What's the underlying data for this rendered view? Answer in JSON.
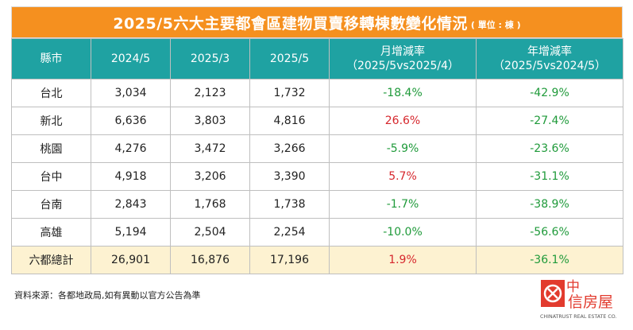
{
  "title": {
    "main": "2025/5六大主要都會區建物買賣移轉棟數變化情況",
    "unit": "( 單位 : 棟 )"
  },
  "header": [
    {
      "line1": "縣市",
      "line2": ""
    },
    {
      "line1": "2024/5",
      "line2": ""
    },
    {
      "line1": "2025/3",
      "line2": ""
    },
    {
      "line1": "2025/5",
      "line2": ""
    },
    {
      "line1": "月增減率",
      "line2": "（2025/5vs2025/4）"
    },
    {
      "line1": "年增減率",
      "line2": "（2025/5vs2024/5）"
    }
  ],
  "chart_data": {
    "type": "table",
    "title": "2025/5六大主要都會區建物買賣移轉棟數變化情況",
    "unit": "( 單位 : 棟 )",
    "columns": [
      "縣市",
      "2024/5",
      "2025/3",
      "2025/5",
      "月增減率（2025/5vs2025/4）",
      "年增減率（2025/5vs2024/5）"
    ],
    "rows": [
      {
        "city": "台北",
        "y2024_5": "3,034",
        "y2025_3": "2,123",
        "y2025_5": "1,732",
        "mom": "-18.4%",
        "yoy": "-42.9%"
      },
      {
        "city": "新北",
        "y2024_5": "6,636",
        "y2025_3": "3,803",
        "y2025_5": "4,816",
        "mom": "26.6%",
        "yoy": "-27.4%"
      },
      {
        "city": "桃園",
        "y2024_5": "4,276",
        "y2025_3": "3,472",
        "y2025_5": "3,266",
        "mom": "-5.9%",
        "yoy": "-23.6%"
      },
      {
        "city": "台中",
        "y2024_5": "4,918",
        "y2025_3": "3,206",
        "y2025_5": "3,390",
        "mom": "5.7%",
        "yoy": "-31.1%"
      },
      {
        "city": "台南",
        "y2024_5": "2,843",
        "y2025_3": "1,768",
        "y2025_5": "1,738",
        "mom": "-1.7%",
        "yoy": "-38.9%"
      },
      {
        "city": "高雄",
        "y2024_5": "5,194",
        "y2025_3": "2,504",
        "y2025_5": "2,254",
        "mom": "-10.0%",
        "yoy": "-56.6%"
      },
      {
        "city": "六都總計",
        "y2024_5": "26,901",
        "y2025_3": "16,876",
        "y2025_5": "17,196",
        "mom": "1.9%",
        "yoy": "-36.1%"
      }
    ]
  },
  "footer": {
    "source": "資料來源：各都地政局,如有異動以官方公告為準"
  },
  "logo": {
    "line1": "中",
    "line2": "信房屋",
    "tagline": "CHINATRUST REAL ESTATE CO."
  },
  "colors": {
    "title_bg": "#f5901f",
    "header_bg": "#1fa2a2",
    "total_row_bg": "#fdf2d1",
    "positive": "#d6272d",
    "negative": "#1f9a3a",
    "logo_red": "#e23b2e"
  }
}
